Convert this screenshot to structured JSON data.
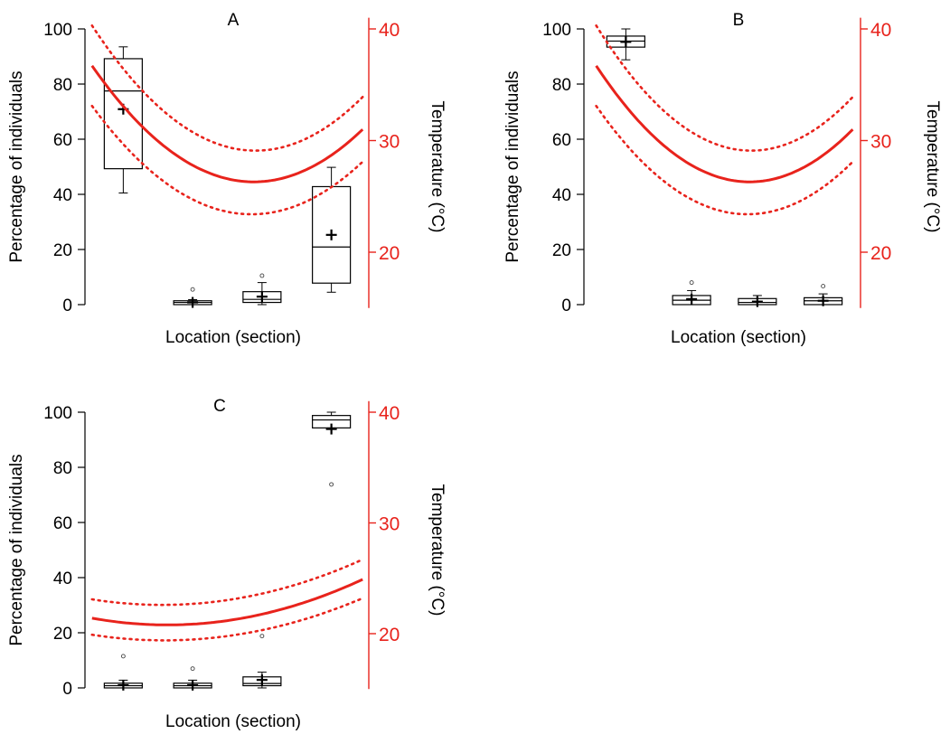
{
  "chart_data": [
    {
      "type": "box",
      "title": "A",
      "xlabel": "Location (section)",
      "ylabel": "Percentage of individuals",
      "y2label": "Temperature (°C)",
      "ylim": [
        0,
        100
      ],
      "yticks": [
        0,
        20,
        40,
        60,
        80,
        100
      ],
      "y2lim": [
        15,
        41
      ],
      "y2ticks": [
        20,
        30,
        40
      ],
      "boxes": [
        {
          "section": 1,
          "min": 40.5,
          "q1": 49.3,
          "median": 77.5,
          "q3": 89.2,
          "max": 93.5,
          "mean": 70.9,
          "outliers": []
        },
        {
          "section": 2,
          "min": 0,
          "q1": 0,
          "median": 0.8,
          "q3": 1.4,
          "max": 1.8,
          "mean": 0.8,
          "outliers": [
            5.5
          ]
        },
        {
          "section": 3,
          "min": 0,
          "q1": 0.8,
          "median": 1.9,
          "q3": 4.7,
          "max": 8.0,
          "mean": 2.9,
          "outliers": [
            10.5
          ]
        },
        {
          "section": 4,
          "min": 4.5,
          "q1": 7.8,
          "median": 20.9,
          "q3": 42.8,
          "max": 49.8,
          "mean": 25.3,
          "outliers": []
        }
      ],
      "temperature_curve": {
        "fit": {
          "x": [
            0.55,
            2.87,
            4.45
          ],
          "y": [
            36.7,
            26.3,
            31.0
          ]
        },
        "upper": {
          "x": [
            0.55,
            2.87,
            4.45
          ],
          "y": [
            40.3,
            29.1,
            33.9
          ]
        },
        "lower": {
          "x": [
            0.55,
            2.87,
            4.45
          ],
          "y": [
            33.1,
            23.4,
            28.1
          ]
        }
      }
    },
    {
      "type": "box",
      "title": "B",
      "xlabel": "Location (section)",
      "ylabel": "Percentage of individuals",
      "y2label": "Temperature (°C)",
      "ylim": [
        0,
        100
      ],
      "yticks": [
        0,
        20,
        40,
        60,
        80,
        100
      ],
      "y2lim": [
        15,
        41
      ],
      "y2ticks": [
        20,
        30,
        40
      ],
      "boxes": [
        {
          "section": 1,
          "min": 88.8,
          "q1": 93.4,
          "median": 95.6,
          "q3": 97.4,
          "max": 100,
          "mean": 95.3,
          "outliers": []
        },
        {
          "section": 2,
          "min": 0,
          "q1": 0,
          "median": 1.6,
          "q3": 3.3,
          "max": 5.1,
          "mean": 2.0,
          "outliers": [
            8.0
          ]
        },
        {
          "section": 3,
          "min": 0,
          "q1": 0,
          "median": 0.8,
          "q3": 2.2,
          "max": 3.3,
          "mean": 1.1,
          "outliers": []
        },
        {
          "section": 4,
          "min": 0,
          "q1": 0,
          "median": 1.4,
          "q3": 2.5,
          "max": 3.9,
          "mean": 1.4,
          "outliers": [
            6.7
          ]
        }
      ],
      "temperature_curve": {
        "fit": {
          "x": [
            0.55,
            2.87,
            4.45
          ],
          "y": [
            36.7,
            26.3,
            31.0
          ]
        },
        "upper": {
          "x": [
            0.55,
            2.87,
            4.45
          ],
          "y": [
            40.3,
            29.1,
            33.9
          ]
        },
        "lower": {
          "x": [
            0.55,
            2.87,
            4.45
          ],
          "y": [
            33.1,
            23.4,
            28.1
          ]
        }
      }
    },
    {
      "type": "box",
      "title": "C",
      "xlabel": "Location (section)",
      "ylabel": "Percentage of individuals",
      "y2label": "Temperature (°C)",
      "ylim": [
        0,
        100
      ],
      "yticks": [
        0,
        20,
        40,
        60,
        80,
        100
      ],
      "y2lim": [
        15,
        41
      ],
      "y2ticks": [
        20,
        30,
        40
      ],
      "boxes": [
        {
          "section": 1,
          "min": 0,
          "q1": 0,
          "median": 0.8,
          "q3": 1.7,
          "max": 2.8,
          "mean": 1.0,
          "outliers": [
            11.5
          ]
        },
        {
          "section": 2,
          "min": 0,
          "q1": 0,
          "median": 0.8,
          "q3": 1.7,
          "max": 2.8,
          "mean": 1.0,
          "outliers": [
            7.0
          ]
        },
        {
          "section": 3,
          "min": 0,
          "q1": 0.8,
          "median": 1.6,
          "q3": 4.0,
          "max": 5.7,
          "mean": 2.9,
          "outliers": [
            18.8
          ]
        },
        {
          "section": 4,
          "min": 94.3,
          "q1": 94.3,
          "median": 97.2,
          "q3": 98.8,
          "max": 100,
          "mean": 93.9,
          "outliers": [
            73.8
          ]
        }
      ],
      "temperature_curve": {
        "fit": {
          "x": [
            0.55,
            1.5,
            4.45
          ],
          "y": [
            21.4,
            20.8,
            24.9
          ]
        },
        "upper": {
          "x": [
            0.55,
            1.5,
            4.45
          ],
          "y": [
            23.1,
            22.6,
            26.7
          ]
        },
        "lower": {
          "x": [
            0.55,
            1.5,
            4.45
          ],
          "y": [
            19.9,
            19.4,
            23.2
          ]
        }
      }
    }
  ],
  "colors": {
    "axis": "#000000",
    "temperature": "#e8231c"
  }
}
